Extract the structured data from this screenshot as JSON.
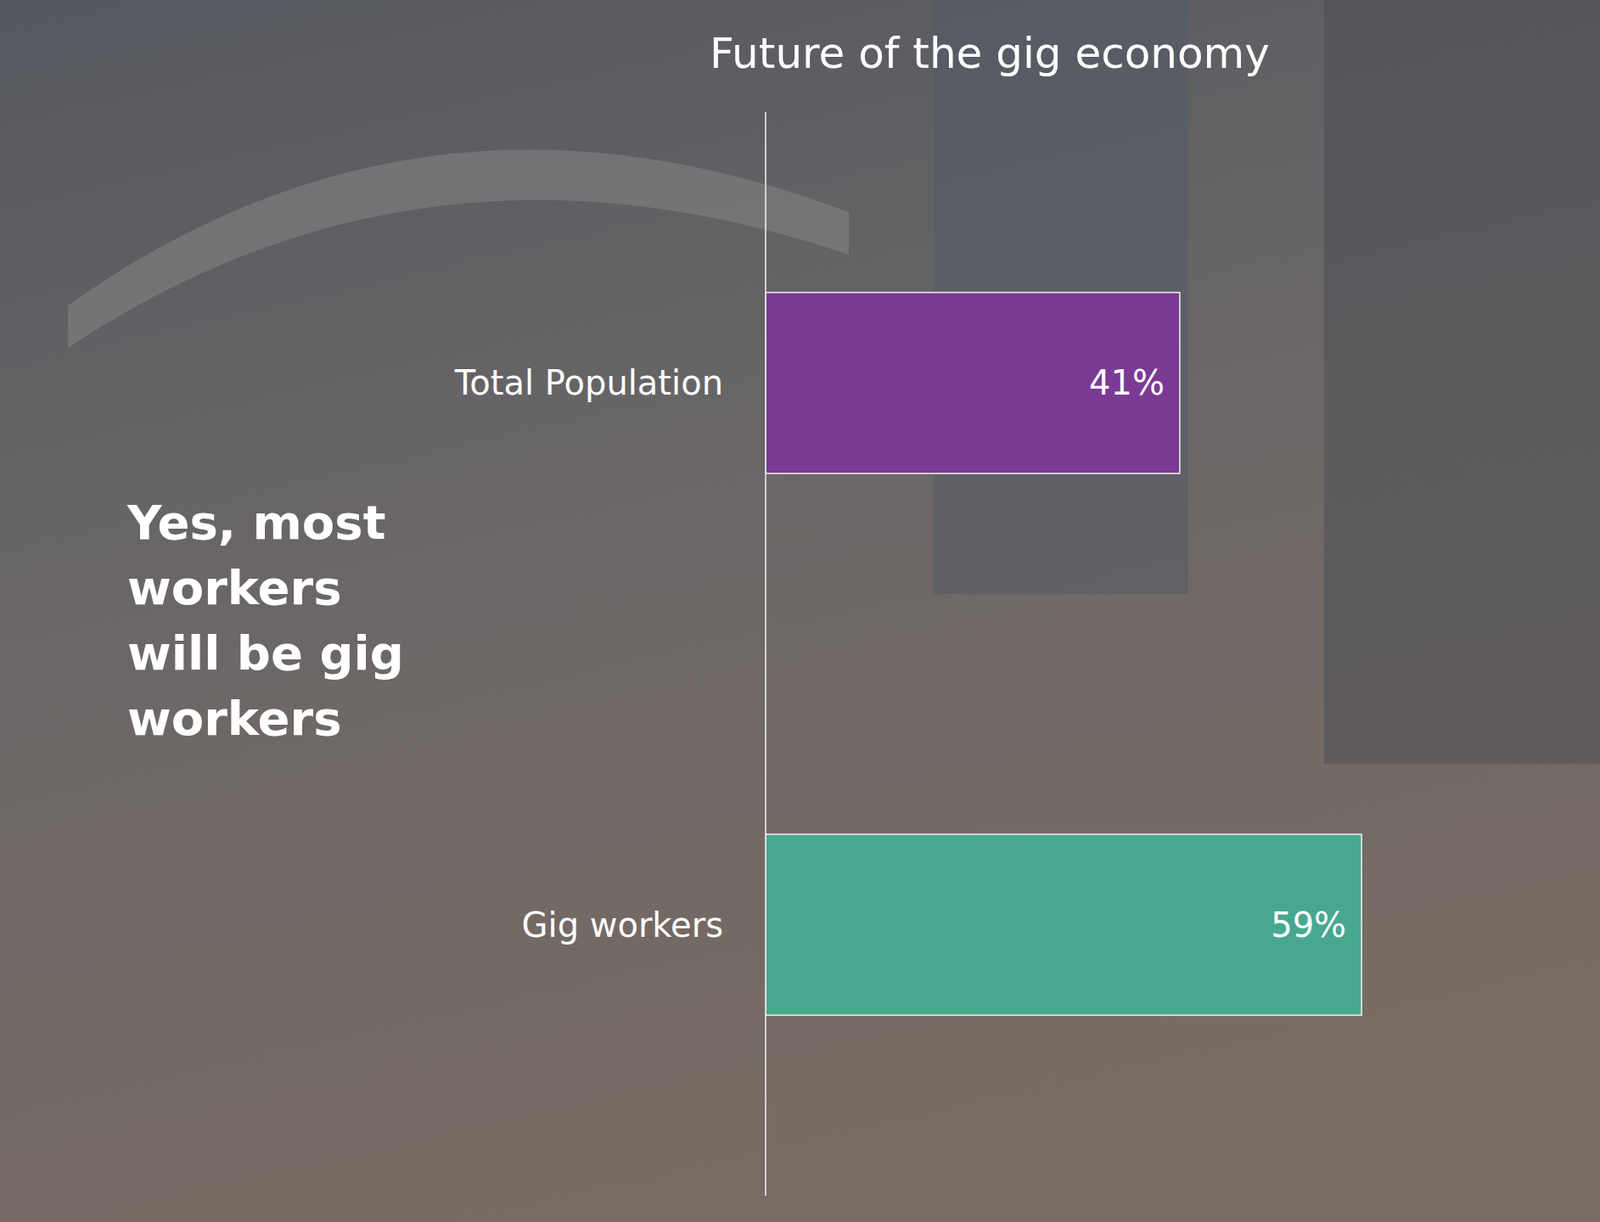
{
  "chart_data": {
    "type": "bar",
    "orientation": "horizontal",
    "title": "Future of the gig economy",
    "annotation": "Yes, most workers will be gig workers",
    "categories": [
      "Total Population",
      "Gig workers"
    ],
    "values": [
      41,
      59
    ],
    "value_labels": [
      "41%",
      "59%"
    ],
    "colors": [
      "#7b3a94",
      "#48a88f"
    ],
    "xlim": [
      0,
      80
    ],
    "data_labels": true,
    "tick_labels": "y"
  }
}
